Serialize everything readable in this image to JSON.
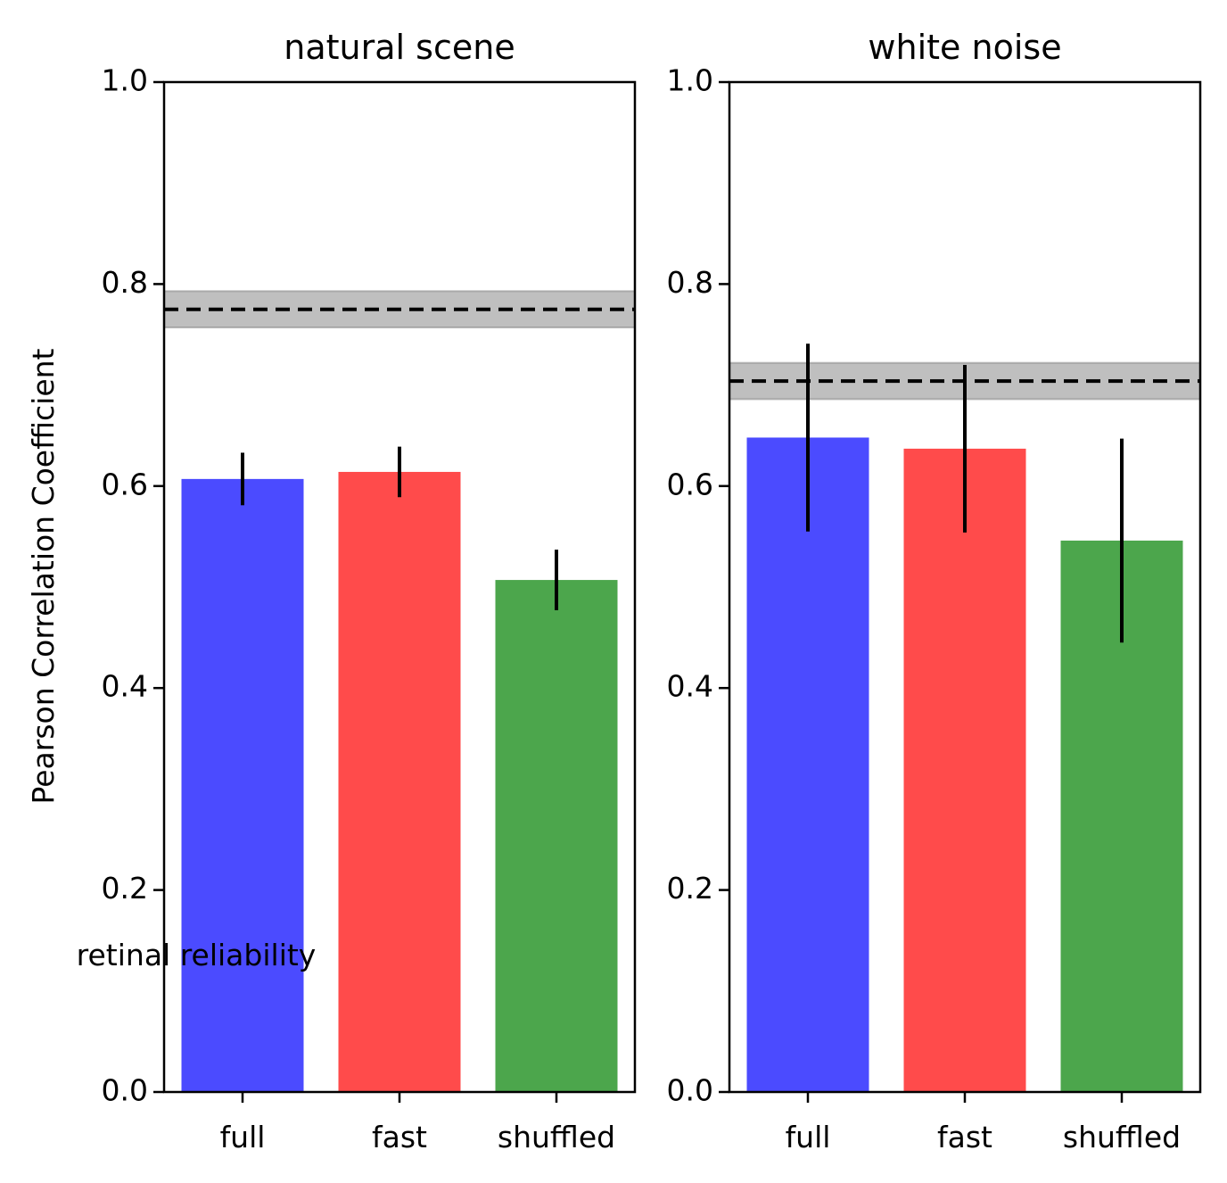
{
  "chart_data": [
    {
      "type": "bar",
      "title": "natural scene",
      "ylabel": "Pearson Correlation Coefficient",
      "categories": [
        "full",
        "fast",
        "shuffled"
      ],
      "values": [
        0.607,
        0.614,
        0.507
      ],
      "errors": [
        0.026,
        0.025,
        0.03
      ],
      "colors": [
        "#4b4bff",
        "#ff4b4b",
        "#4ca64c"
      ],
      "ylim": [
        0,
        1
      ],
      "yticks": [
        "0.0",
        "0.2",
        "0.4",
        "0.6",
        "0.8",
        "1.0"
      ],
      "reference": {
        "label": "retinal reliability",
        "value": 0.775,
        "band": [
          0.757,
          0.793
        ]
      }
    },
    {
      "type": "bar",
      "title": "white noise",
      "ylabel": "",
      "categories": [
        "full",
        "fast",
        "shuffled"
      ],
      "values": [
        0.648,
        0.637,
        0.546
      ],
      "errors": [
        0.093,
        0.083,
        0.101
      ],
      "colors": [
        "#4b4bff",
        "#ff4b4b",
        "#4ca64c"
      ],
      "ylim": [
        0,
        1
      ],
      "yticks": [
        "0.0",
        "0.2",
        "0.4",
        "0.6",
        "0.8",
        "1.0"
      ],
      "reference": {
        "value": 0.704,
        "band": [
          0.686,
          0.722
        ]
      }
    }
  ]
}
